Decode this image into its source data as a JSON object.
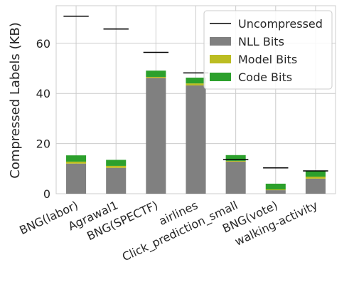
{
  "chart_data": {
    "type": "bar",
    "stacked": true,
    "title": "",
    "xlabel": "",
    "ylabel": "Compressed Labels (KB)",
    "ylim": [
      0,
      75
    ],
    "yticks": [
      0,
      20,
      40,
      60
    ],
    "grid": true,
    "legend_position": "top-right",
    "categories": [
      "BNG(labor)",
      "Agrawal1",
      "BNG(SPECTF)",
      "airlines",
      "Click_prediction_small",
      "BNG(vote)",
      "walking-activity"
    ],
    "series": [
      {
        "name": "NLL Bits",
        "color": "#808080",
        "values": [
          12.0,
          10.3,
          46.2,
          43.2,
          12.8,
          1.4,
          6.0
        ]
      },
      {
        "name": "Model Bits",
        "color": "#bcbd22",
        "values": [
          0.8,
          0.8,
          0.4,
          0.8,
          0.3,
          0.3,
          0.8
        ]
      },
      {
        "name": "Code Bits",
        "color": "#2ca02c",
        "values": [
          2.5,
          2.4,
          2.5,
          2.3,
          2.3,
          2.3,
          2.2
        ]
      }
    ],
    "uncompressed": {
      "name": "Uncompressed",
      "color": "#000000",
      "values": [
        70.8,
        65.7,
        56.4,
        48.2,
        13.6,
        10.3,
        9.1
      ]
    }
  }
}
